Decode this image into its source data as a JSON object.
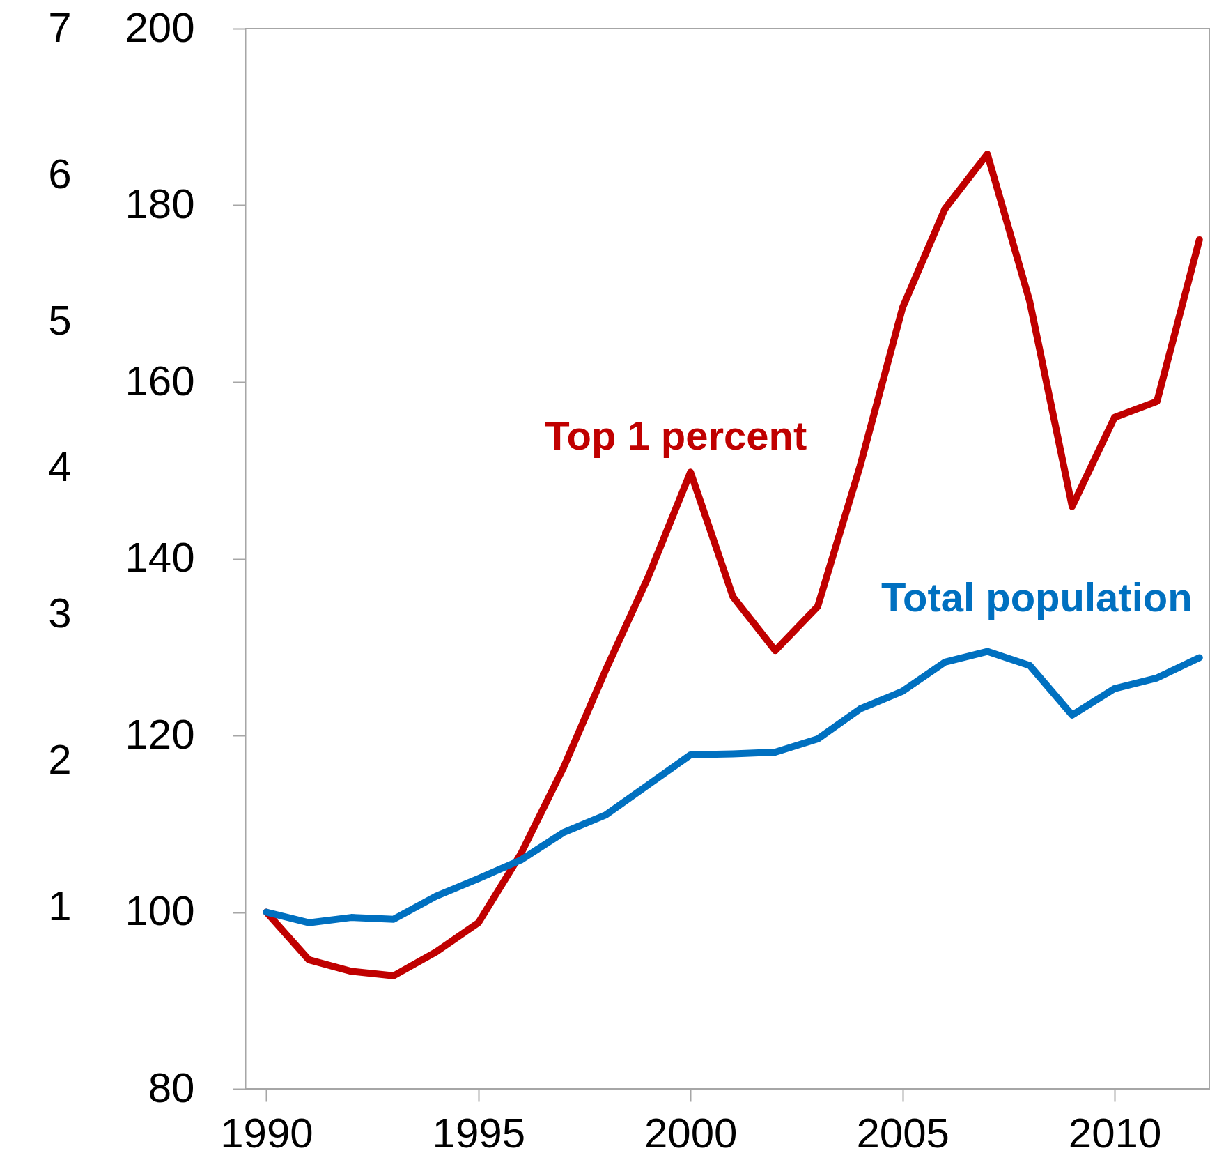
{
  "chart_data": {
    "type": "line",
    "x": [
      1990,
      1991,
      1992,
      1993,
      1994,
      1995,
      1996,
      1997,
      1998,
      1999,
      2000,
      2001,
      2002,
      2003,
      2004,
      2005,
      2006,
      2007,
      2008,
      2009,
      2010,
      2011,
      2012
    ],
    "series": [
      {
        "name": "Top 1 percent",
        "color": "#c00000",
        "values": [
          100,
          94.6,
          93.3,
          92.8,
          95.5,
          98.8,
          106.6,
          116.3,
          127.4,
          137.9,
          149.8,
          135.7,
          129.6,
          134.6,
          150.5,
          168.4,
          179.6,
          185.8,
          169.1,
          145.9,
          156.0,
          157.8,
          176.1
        ]
      },
      {
        "name": "Total population",
        "color": "#0070c0",
        "values": [
          100,
          98.8,
          99.4,
          99.2,
          101.8,
          103.8,
          105.9,
          109.0,
          111.0,
          114.4,
          117.8,
          117.9,
          118.1,
          119.6,
          123.0,
          125.0,
          128.3,
          129.5,
          127.9,
          122.3,
          125.3,
          126.5,
          128.8
        ]
      }
    ],
    "xlim": [
      1989.5,
      2012.25
    ],
    "xticks": [
      1990,
      1995,
      2000,
      2005,
      2010
    ],
    "ylim": [
      80,
      200
    ],
    "yticks": [
      80,
      100,
      120,
      140,
      160,
      180,
      200
    ],
    "y2lim": [
      -0.24,
      7.0
    ],
    "y2ticks": [
      1,
      2,
      3,
      4,
      5,
      6,
      7
    ],
    "grid": false,
    "legend": false,
    "marker": "none",
    "line_style": "solid"
  }
}
